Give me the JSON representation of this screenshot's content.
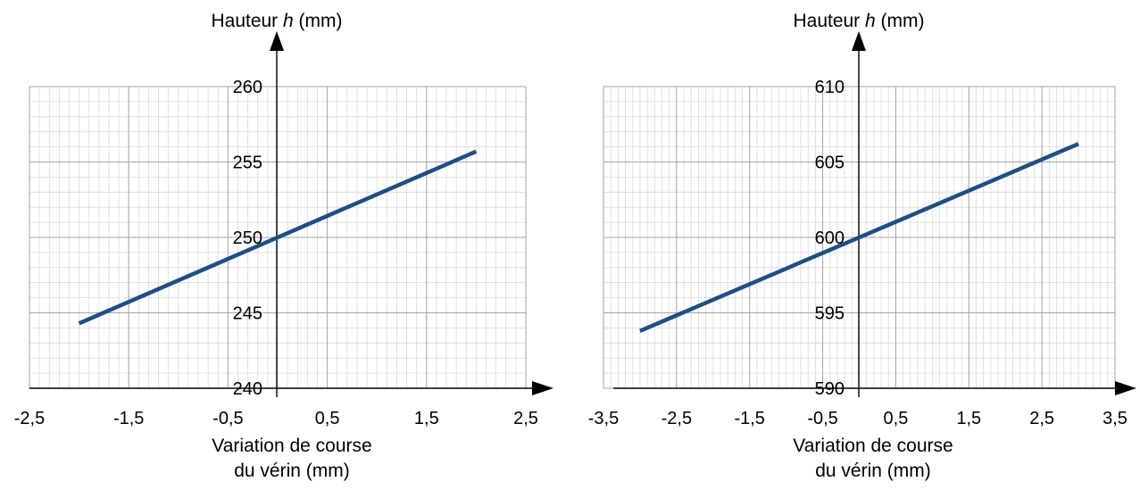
{
  "colors": {
    "line": "#1f4e85",
    "grid_minor": "#d9d9d9",
    "grid_major": "#a6a6a6",
    "axis": "#000000"
  },
  "chart_data": [
    {
      "type": "line",
      "title_prefix": "Hauteur ",
      "title_var": "h",
      "title_suffix": " (mm)",
      "xlabel_line1": "Variation de course",
      "xlabel_line2": "du vérin (mm)",
      "xlim": [
        -2.5,
        2.5
      ],
      "ylim": [
        240,
        260
      ],
      "x_ticks": [
        "-2,5",
        "-1,5",
        "-0,5",
        "0,5",
        "1,5",
        "2,5"
      ],
      "y_ticks": [
        "240",
        "245",
        "250",
        "255",
        "260"
      ],
      "x": [
        -2,
        2
      ],
      "y": [
        244.3,
        255.7
      ]
    },
    {
      "type": "line",
      "title_prefix": "Hauteur ",
      "title_var": "h",
      "title_suffix": " (mm)",
      "xlabel_line1": "Variation de course",
      "xlabel_line2": "du vérin (mm)",
      "xlim": [
        -3.5,
        3.5
      ],
      "ylim": [
        590,
        610
      ],
      "x_ticks": [
        "-3,5",
        "-2,5",
        "-1,5",
        "-0,5",
        "0,5",
        "1,5",
        "2,5",
        "3,5"
      ],
      "y_ticks": [
        "590",
        "595",
        "600",
        "605",
        "610"
      ],
      "x": [
        -3,
        3
      ],
      "y": [
        593.8,
        606.2
      ]
    }
  ]
}
